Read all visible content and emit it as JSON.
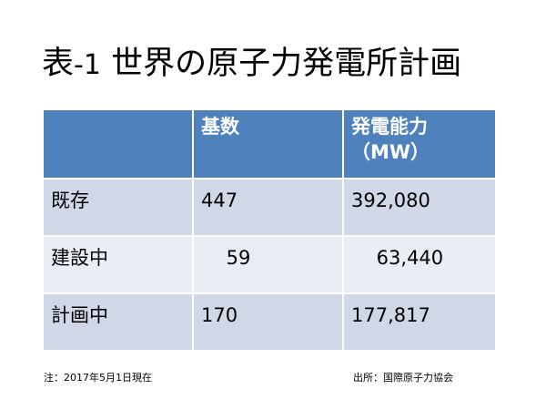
{
  "title": {
    "prefix": "表",
    "dash": "-",
    "number": "1",
    "main": " 世界の原子力発電所計画"
  },
  "table": {
    "headers": [
      "",
      "基数",
      "発電能力",
      "（MW）"
    ],
    "rows": [
      {
        "label": "既存",
        "count": "447",
        "capacity": "392,080"
      },
      {
        "label": "建設中",
        "count": "　 59",
        "capacity": "　 63,440"
      },
      {
        "label": "計画中",
        "count": "170",
        "capacity": "177,817"
      }
    ]
  },
  "footnotes": {
    "note": "注：2017年5月1日現在",
    "source": "出所：国際原子力協会"
  },
  "colors": {
    "header_bg": "#4f81bd",
    "row_dark": "#d0d8e8",
    "row_light": "#e9edf4"
  }
}
